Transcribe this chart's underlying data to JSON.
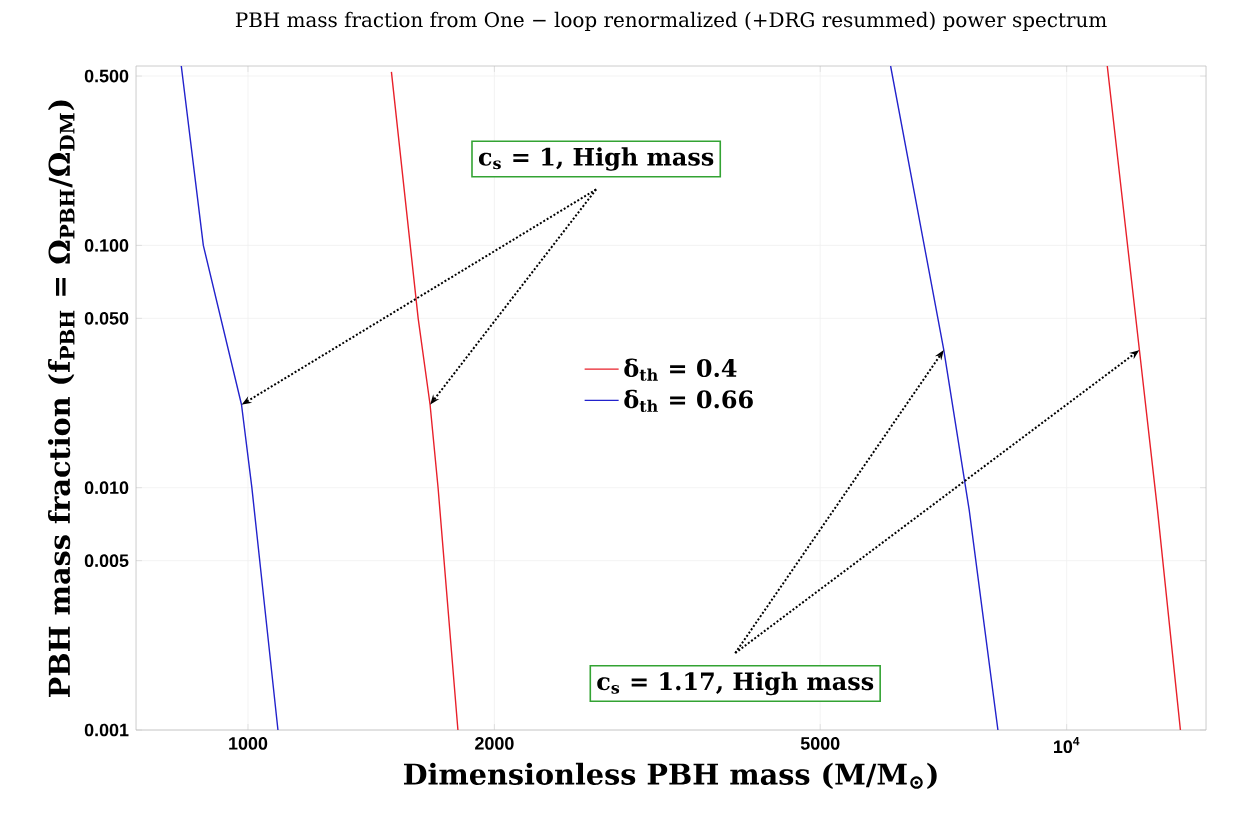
{
  "chart_data": {
    "type": "line",
    "title": "PBH mass fraction from One − loop renormalized (+DRG resummed) power spectrum",
    "xlabel": "Dimensionless PBH mass (M/M$_{⊙}$)",
    "ylabel": "PBH mass fraction (f$_{PBH}$ = Ω$_{PBH}$/Ω$_{DM}$)",
    "log": "xy",
    "xlim": [
      730,
      14800
    ],
    "ylim": [
      0.001,
      0.55
    ],
    "xticks": [
      1000,
      2000,
      5000,
      {
        "value": 10000,
        "label": "10$^{4}$"
      }
    ],
    "yticks": [
      0.001,
      0.005,
      {
        "value": 0.01,
        "label": "0.010"
      },
      {
        "value": 0.05,
        "label": "0.050"
      },
      {
        "value": 0.1,
        "label": "0.100"
      },
      {
        "value": 0.5,
        "label": "0.500"
      }
    ],
    "grid": true,
    "legend": "center",
    "series": [
      {
        "name": "δ$_{th}$ = 0.4",
        "color": "#e8202a",
        "x": [
          1497,
          1614,
          1669,
          1707,
          1805
        ],
        "values": [
          0.52,
          0.05,
          0.022,
          0.01,
          0.001
        ]
      },
      {
        "name": "δ$_{th}$ = 0.66",
        "color": "#2222cc",
        "x": [
          829,
          882,
          982,
          1011,
          1088
        ],
        "values": [
          0.55,
          0.1,
          0.022,
          0.01,
          0.001
        ]
      },
      {
        "color": "#2222cc",
        "x": [
          6095,
          7079,
          7603,
          8242
        ],
        "values": [
          0.55,
          0.037,
          0.0081,
          0.001
        ]
      },
      {
        "color": "#e8202a",
        "x": [
          11210,
          12270,
          12910,
          13770
        ],
        "values": [
          0.55,
          0.037,
          0.0081,
          0.001
        ]
      }
    ],
    "annotations": [
      {
        "text": "c$_{s}$ = 1, High mass",
        "x": 982,
        "y": 0.022
      },
      {
        "text": "c$_{s}$ = 1.17, High mass",
        "x": 7079,
        "y": 0.037
      }
    ]
  }
}
